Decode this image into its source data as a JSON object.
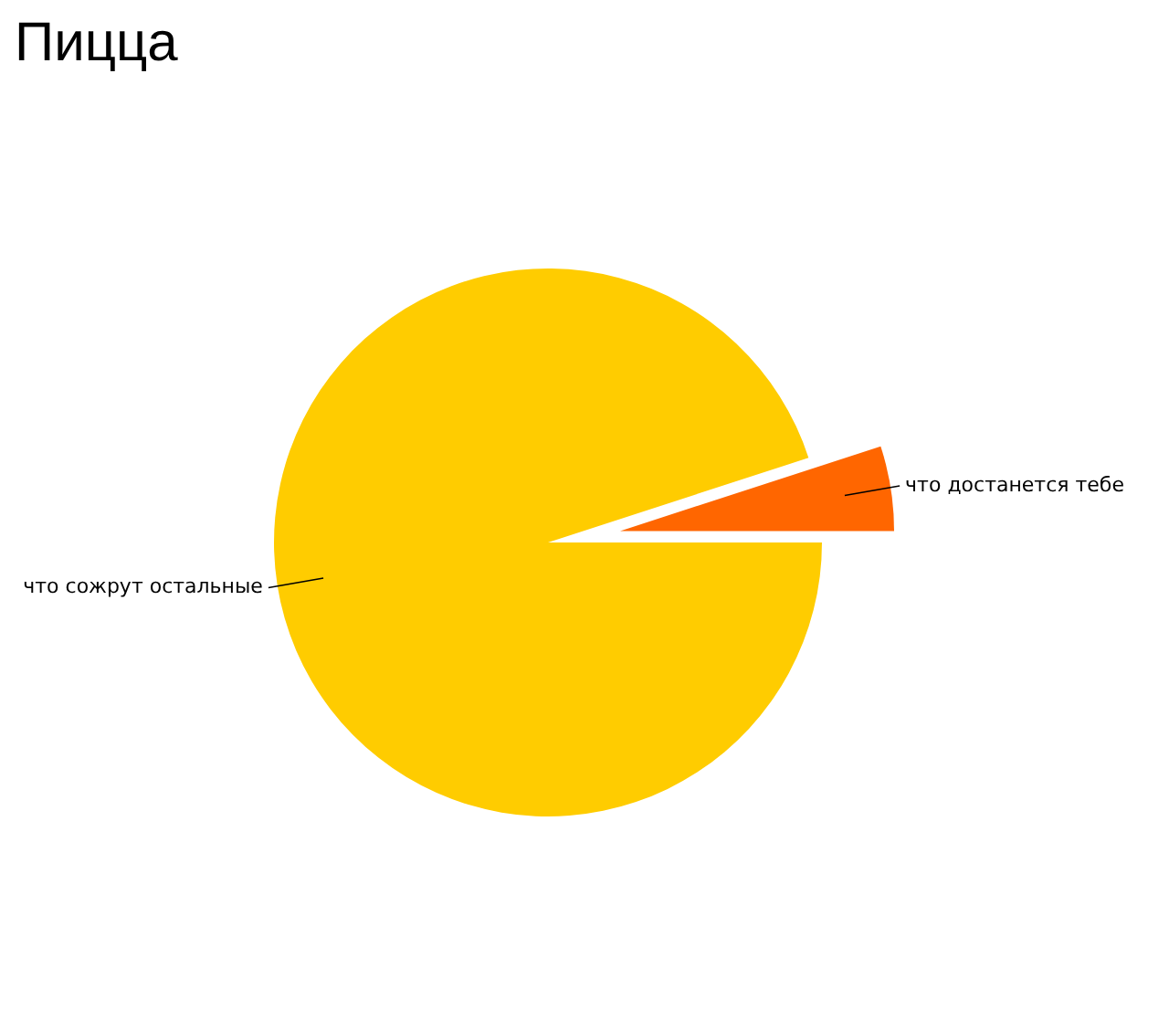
{
  "chart_data": {
    "type": "pie",
    "title": "Пицца",
    "categories": [
      "что достанется тебе",
      "что сожрут остальные"
    ],
    "values": [
      5,
      95
    ],
    "colors": [
      "#ff6600",
      "#ffcc00"
    ]
  }
}
